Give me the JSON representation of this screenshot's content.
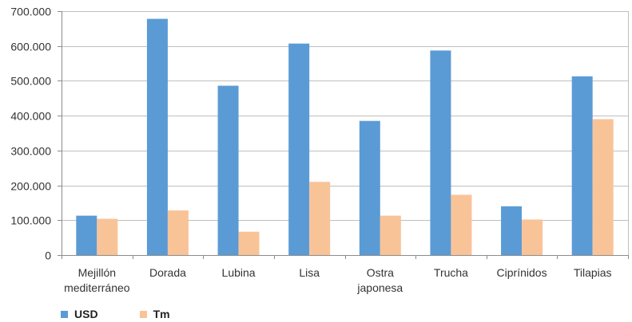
{
  "chart_data": {
    "type": "bar",
    "categories": [
      [
        "Mejillón",
        "mediterráneo"
      ],
      [
        "Dorada"
      ],
      [
        "Lubina"
      ],
      [
        "Lisa"
      ],
      [
        "Ostra",
        "japonesa"
      ],
      [
        "Trucha"
      ],
      [
        "Ciprínidos"
      ],
      [
        "Tilapias"
      ]
    ],
    "series": [
      {
        "name": "USD",
        "color": "#5b9bd5",
        "values": [
          113000,
          678000,
          486000,
          607000,
          385000,
          587000,
          140000,
          513000
        ]
      },
      {
        "name": "Tm",
        "color": "#f9c398",
        "values": [
          104000,
          128000,
          67000,
          210000,
          113000,
          173000,
          102000,
          390000
        ]
      }
    ],
    "yticks": [
      "0",
      "100.000",
      "200.000",
      "300.000",
      "400.000",
      "500.000",
      "600.000",
      "700.000"
    ],
    "ylim": [
      0,
      700000
    ],
    "grid": true,
    "legend": "bottom-left",
    "title": "",
    "xlabel": "",
    "ylabel": ""
  }
}
